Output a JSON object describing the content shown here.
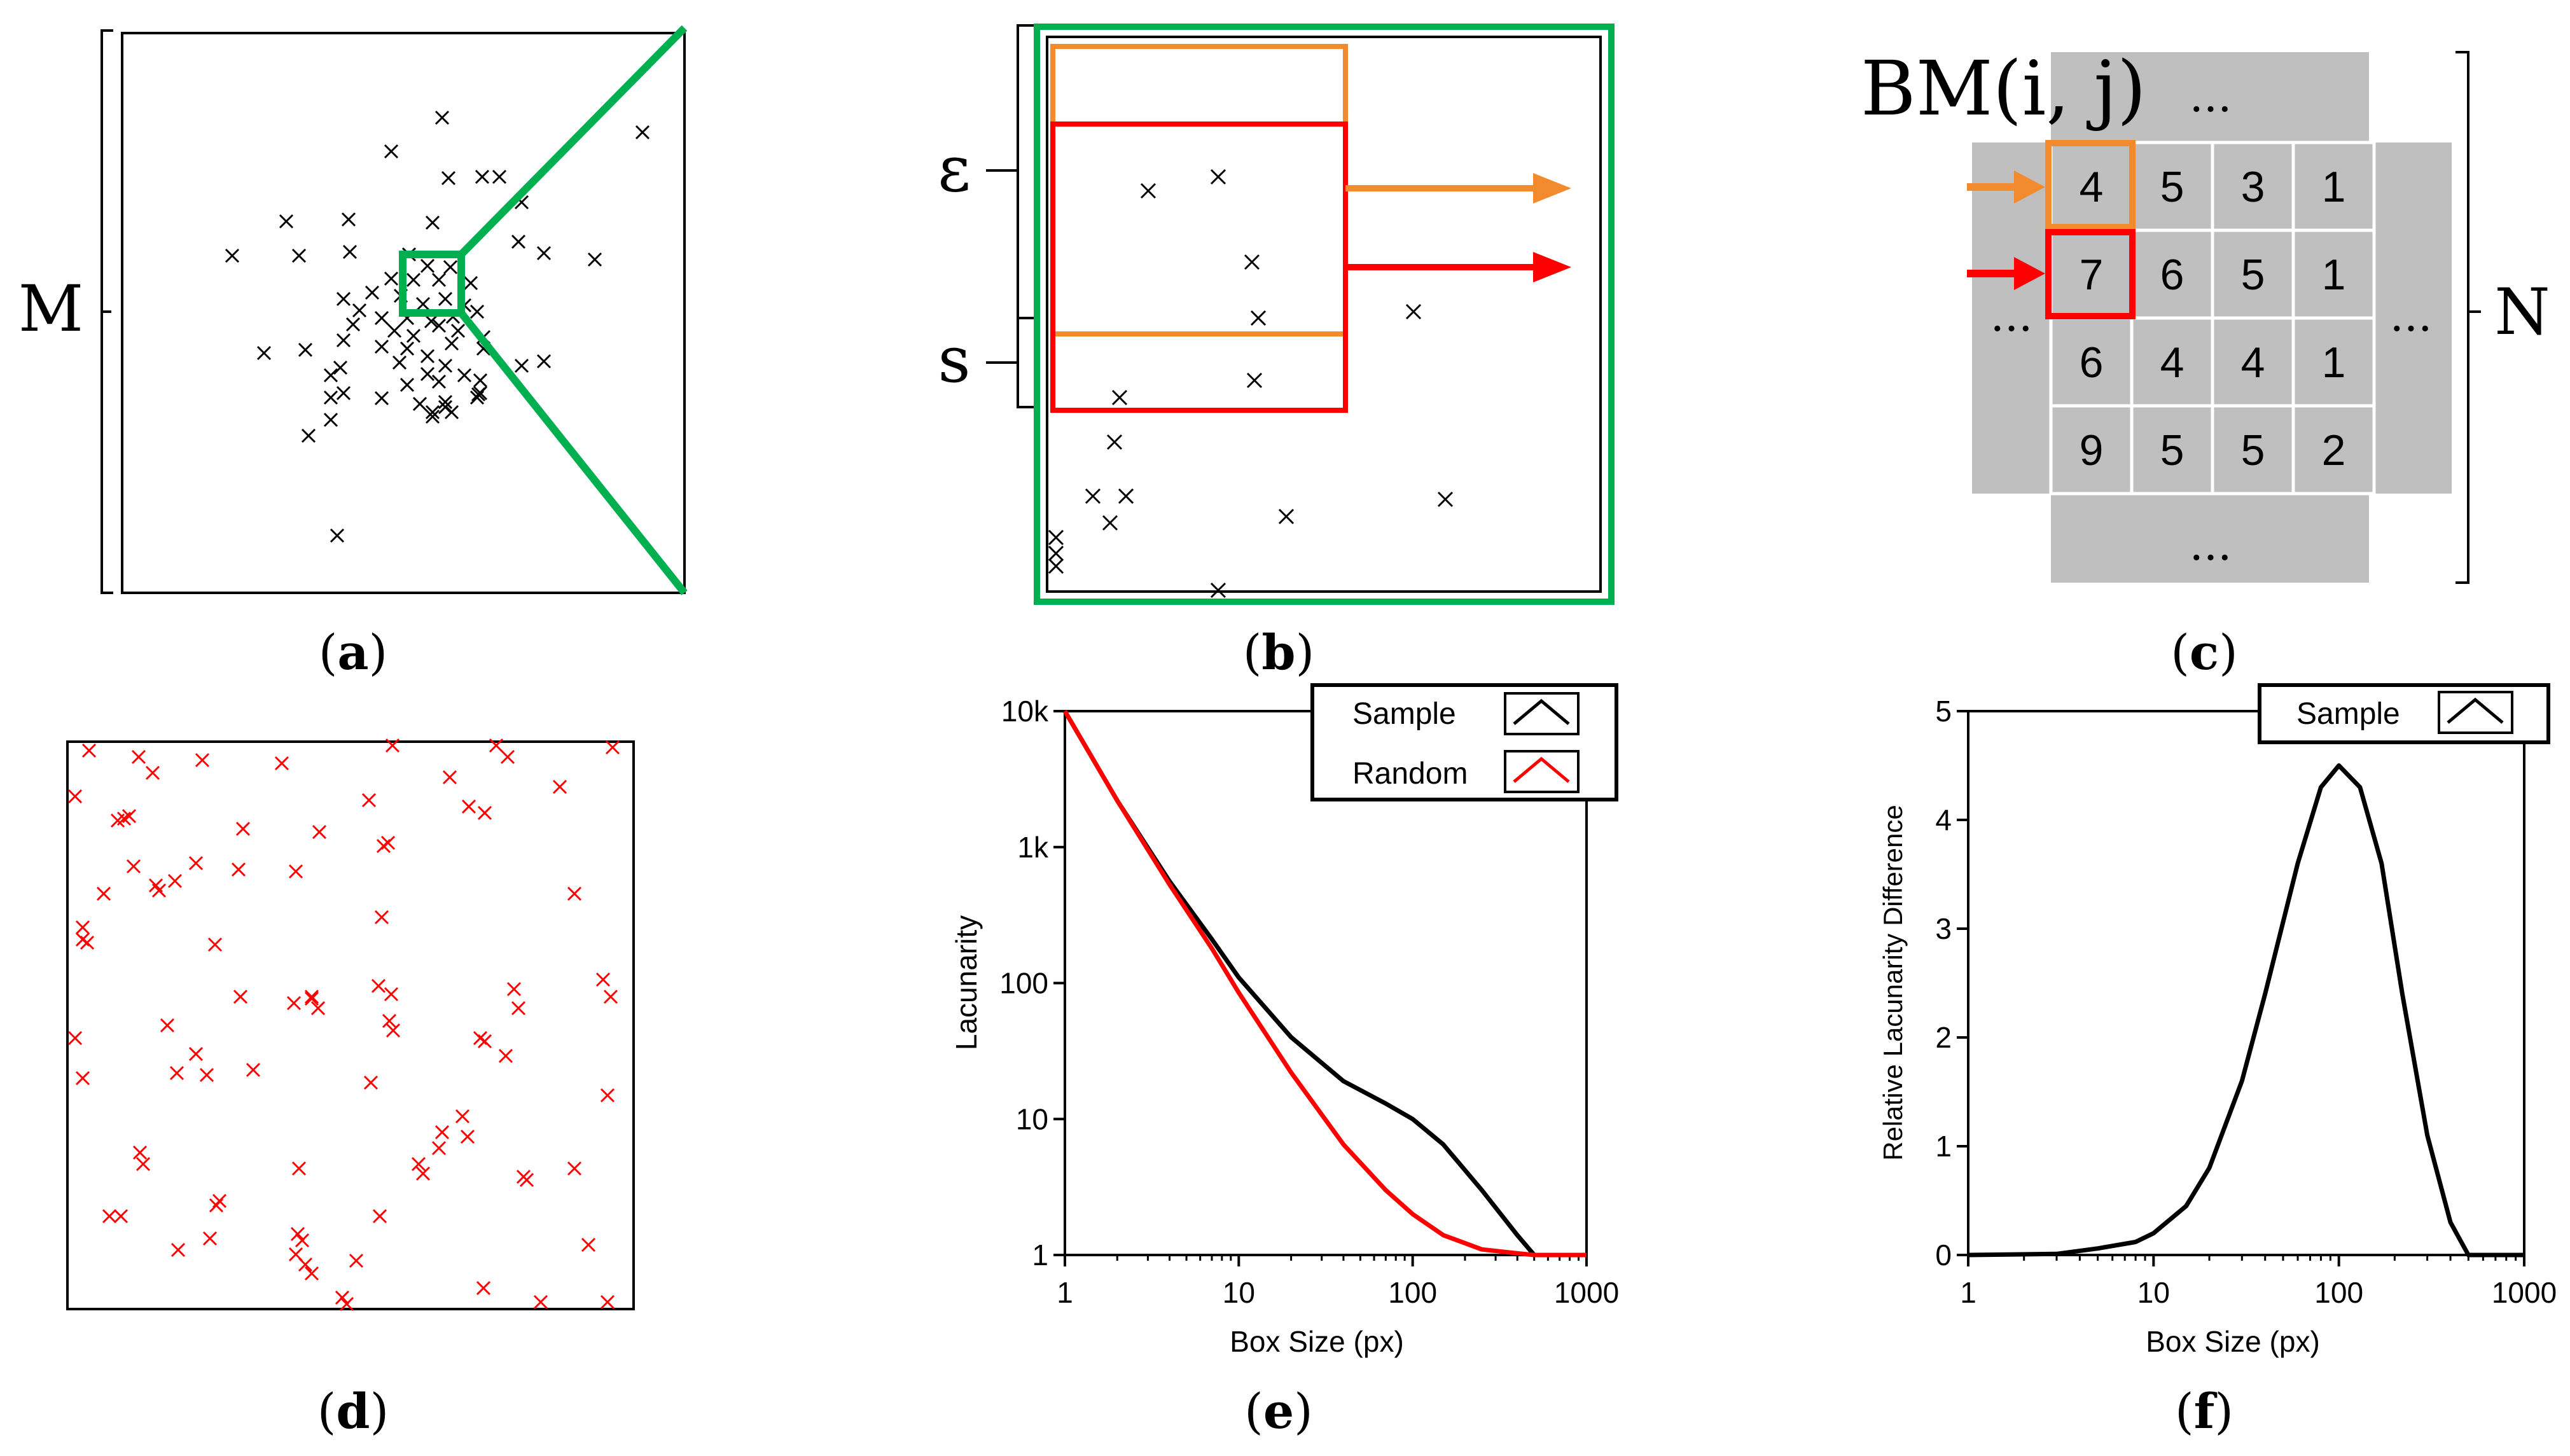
{
  "panels": {
    "a": {
      "caption_open": "(",
      "caption_letter": "a",
      "caption_close": ")",
      "label": "M"
    },
    "b": {
      "caption_open": "(",
      "caption_letter": "b",
      "caption_close": ")",
      "label_epsilon": "ε",
      "label_s": "s"
    },
    "c": {
      "caption_open": "(",
      "caption_letter": "c",
      "caption_close": ")",
      "title": "BM(i, j)",
      "label_n": "N",
      "ellipsis": "..."
    },
    "d": {
      "caption_open": "(",
      "caption_letter": "d",
      "caption_close": ")"
    },
    "e": {
      "caption_open": "(",
      "caption_letter": "e",
      "caption_close": ")"
    },
    "f": {
      "caption_open": "(",
      "caption_letter": "f",
      "caption_close": ")"
    }
  },
  "grid": {
    "rows": [
      [
        "4",
        "5",
        "3",
        "1"
      ],
      [
        "7",
        "6",
        "5",
        "1"
      ],
      [
        "6",
        "4",
        "4",
        "1"
      ],
      [
        "9",
        "5",
        "5",
        "2"
      ]
    ]
  },
  "colors": {
    "green": "#00b050",
    "orange": "#f28a2e",
    "red": "#ff0000",
    "gray": "#bfbfbf",
    "black": "#000000"
  },
  "chart_data": [
    {
      "type": "line",
      "panel": "e",
      "title": "",
      "xlabel": "Box Size (px)",
      "ylabel": "Lacunarity",
      "xscale": "log",
      "yscale": "log",
      "xlim": [
        1,
        1000
      ],
      "ylim": [
        1,
        10000
      ],
      "xticks": [
        "1",
        "10",
        "100",
        "1000"
      ],
      "yticks": [
        "1",
        "10",
        "100",
        "1k",
        "10k"
      ],
      "legend_position": "top-right",
      "series": [
        {
          "name": "Sample",
          "color": "#000000",
          "x": [
            1,
            2,
            4,
            7,
            10,
            20,
            40,
            70,
            100,
            150,
            250,
            400,
            500,
            700,
            1000
          ],
          "y": [
            10000,
            2200,
            560,
            210,
            110,
            40,
            19,
            13,
            10,
            6.5,
            3,
            1.4,
            1,
            1,
            1
          ]
        },
        {
          "name": "Random",
          "color": "#ff0000",
          "x": [
            1,
            2,
            4,
            7,
            10,
            20,
            40,
            70,
            100,
            150,
            250,
            400,
            500,
            700,
            1000
          ],
          "y": [
            10000,
            2200,
            530,
            180,
            85,
            22,
            6.5,
            3,
            2,
            1.4,
            1.1,
            1.03,
            1,
            1,
            1
          ]
        }
      ]
    },
    {
      "type": "line",
      "panel": "f",
      "title": "",
      "xlabel": "Box Size (px)",
      "ylabel": "Relative Lacunarity Difference",
      "xscale": "log",
      "yscale": "linear",
      "xlim": [
        1,
        1000
      ],
      "ylim": [
        0,
        5
      ],
      "xticks": [
        "1",
        "10",
        "100",
        "1000"
      ],
      "yticks": [
        "0",
        "1",
        "2",
        "3",
        "4",
        "5"
      ],
      "legend_position": "top-right",
      "series": [
        {
          "name": "Sample",
          "color": "#000000",
          "x": [
            1,
            3,
            5,
            8,
            10,
            15,
            20,
            30,
            40,
            60,
            80,
            100,
            130,
            170,
            220,
            300,
            400,
            500,
            700,
            1000
          ],
          "y": [
            0,
            0.01,
            0.06,
            0.12,
            0.2,
            0.45,
            0.8,
            1.6,
            2.4,
            3.6,
            4.3,
            4.5,
            4.3,
            3.6,
            2.4,
            1.1,
            0.3,
            0,
            0,
            0
          ]
        }
      ]
    }
  ]
}
